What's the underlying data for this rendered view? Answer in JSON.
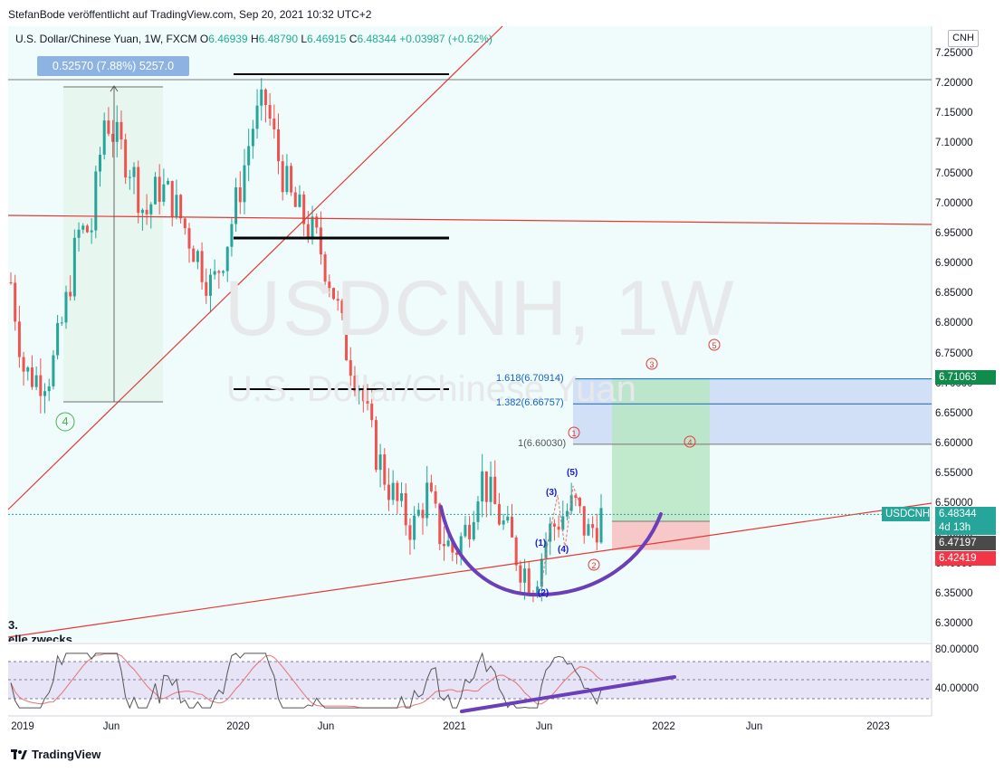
{
  "header": {
    "publisher": "StefanBode veröffentlicht auf TradingView.com, Sep 20, 2021 10:32 UTC+2"
  },
  "symbol": {
    "description": "U.S. Dollar/Chinese Yuan, 1W, FXCM",
    "open_label": "O",
    "open": "6.46939",
    "high_label": "H",
    "high": "6.48790",
    "low_label": "L",
    "low": "6.46915",
    "close_label": "C",
    "close": "6.48344",
    "change": "+0.03987 (+0.62%)"
  },
  "measure": {
    "text": "0.52570 (7.88%) 5257.0"
  },
  "currency": "CNH",
  "watermark": {
    "ticker": "USDCNH, 1W",
    "name": "U.S. Dollar/Chinese Yuan"
  },
  "price_axis": [
    "7.25000",
    "7.20000",
    "7.15000",
    "7.10000",
    "7.05000",
    "7.00000",
    "6.95000",
    "6.90000",
    "6.85000",
    "6.80000",
    "6.75000",
    "6.70000",
    "6.65000",
    "6.60000",
    "6.55000",
    "6.50000",
    "6.45000",
    "6.40000",
    "6.35000",
    "6.30000"
  ],
  "rsi_axis": [
    "80.00000",
    "40.00000"
  ],
  "time_axis": [
    "2019",
    "Jun",
    "2020",
    "Jun",
    "2021",
    "Jun",
    "2022",
    "Jun",
    "2023"
  ],
  "badges": {
    "target": "6.71063",
    "last_symbol": "USDCNH",
    "last_price": "6.48344",
    "countdown": "4d 13h",
    "entry": "6.47197",
    "stop": "6.42419",
    "colors": {
      "target": "#0f8b4c",
      "last": "#26a69a",
      "entry": "#4a4a4a",
      "stop": "#f23645"
    }
  },
  "fib": {
    "f1": "1(6.60030)",
    "f1382": "1.382(6.66757)",
    "f1618": "1.618(6.70914)"
  },
  "waves": {
    "w4_left": "4",
    "circled": [
      "1",
      "2",
      "3",
      "4",
      "5"
    ],
    "sub": [
      "(1)",
      "(2)",
      "(3)",
      "(4)",
      "(5)"
    ]
  },
  "cut_text": {
    "a": "3.",
    "b": "elle zwecks"
  },
  "footer": {
    "brand": "TradingView"
  },
  "chart_data": {
    "type": "candlestick",
    "title": "U.S. Dollar/Chinese Yuan, 1W, FXCM",
    "ylim": [
      6.28,
      7.28
    ],
    "x": [
      "2019-01",
      "2019-06",
      "2020-01",
      "2020-06",
      "2021-01",
      "2021-06",
      "2022-01",
      "2022-06",
      "2023-01"
    ],
    "close_path": [
      6.87,
      6.72,
      6.71,
      6.72,
      6.82,
      6.95,
      6.96,
      7.15,
      7.1,
      7.06,
      6.98,
      7.03,
      7.01,
      6.96,
      6.91,
      6.86,
      6.93,
      7.02,
      7.13,
      7.17,
      7.07,
      7.0,
      6.97,
      6.93,
      6.86,
      6.76,
      6.7,
      6.6,
      6.54,
      6.49,
      6.46,
      6.52,
      6.45,
      6.42,
      6.46,
      6.55,
      6.5,
      6.45,
      6.4,
      6.37,
      6.45,
      6.48,
      6.5,
      6.45,
      6.48
    ],
    "annotations": {
      "fib_levels": [
        {
          "ratio": 1,
          "value": 6.6003
        },
        {
          "ratio": 1.382,
          "value": 6.66757
        },
        {
          "ratio": 1.618,
          "value": 6.70914
        }
      ],
      "position": {
        "entry": 6.47197,
        "target": 6.71063,
        "stop": 6.42419
      },
      "last": 6.48344,
      "hlines": [
        7.215,
        6.945,
        6.695
      ]
    },
    "rsi": {
      "ylim": [
        20,
        90
      ],
      "levels": [
        70,
        30
      ]
    }
  }
}
